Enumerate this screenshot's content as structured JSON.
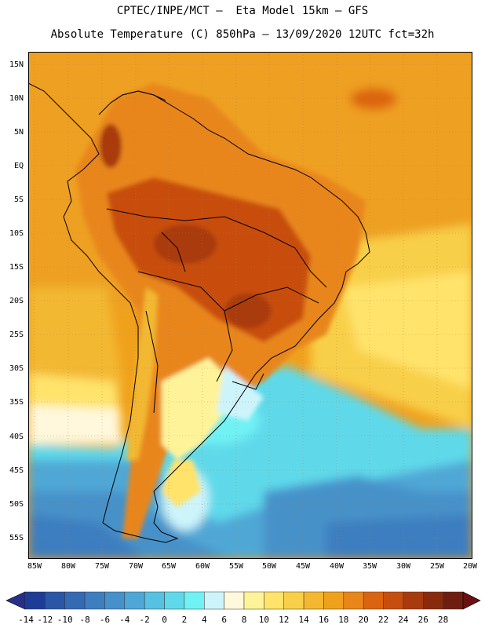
{
  "header": {
    "line1": "CPTEC/INPE/MCT –  Eta Model 15km – GFS",
    "line2": "Absolute Temperature (C) 850hPa – 13/09/2020 12UTC fct=32h"
  },
  "axes": {
    "lat_labels": [
      "15N",
      "10N",
      "5N",
      "EQ",
      "5S",
      "10S",
      "15S",
      "20S",
      "25S",
      "30S",
      "35S",
      "40S",
      "45S",
      "50S",
      "55S"
    ],
    "lon_labels": [
      "85W",
      "80W",
      "75W",
      "70W",
      "65W",
      "60W",
      "55W",
      "50W",
      "45W",
      "40W",
      "35W",
      "30W",
      "25W",
      "20W"
    ]
  },
  "colorbar": {
    "labels": [
      "-14",
      "-12",
      "-10",
      "-8",
      "-6",
      "-4",
      "-2",
      "0",
      "2",
      "4",
      "6",
      "8",
      "10",
      "12",
      "14",
      "16",
      "18",
      "20",
      "22",
      "24",
      "26",
      "28"
    ],
    "colors": [
      "#1e3c96",
      "#2a56a6",
      "#3469b4",
      "#3d7ec0",
      "#4691c9",
      "#4fa7d6",
      "#56c1e0",
      "#5fd9ea",
      "#70f2f4",
      "#cdf4fb",
      "#fff8dc",
      "#fff39a",
      "#ffe36b",
      "#f8cf48",
      "#f3b830",
      "#f0a11c",
      "#e8861a",
      "#dc6410",
      "#c84e10",
      "#a93a0e",
      "#8a2a0c",
      "#6e1e10"
    ],
    "low_color": "#26308a",
    "high_color": "#6a1010"
  }
}
